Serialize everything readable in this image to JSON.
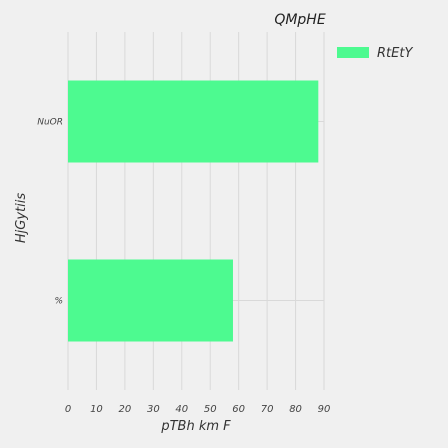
{
  "chart_data": {
    "type": "bar",
    "orientation": "horizontal",
    "title": "QMpHE",
    "xlabel": "pTBh km  F",
    "ylabel": "HjGytiis",
    "categories": [
      "NuOR",
      "%"
    ],
    "series": [
      {
        "name": "RtEtY",
        "values": [
          88,
          58
        ]
      }
    ],
    "xlim": [
      0,
      90
    ],
    "xticks": [
      0,
      10,
      20,
      30,
      40,
      50,
      60,
      70,
      80,
      90
    ],
    "grid": true,
    "legend_position": "top-right",
    "colors": {
      "bar": "#4dfa90",
      "background": "#f0f0f0",
      "grid": "#d9d9d9"
    }
  }
}
